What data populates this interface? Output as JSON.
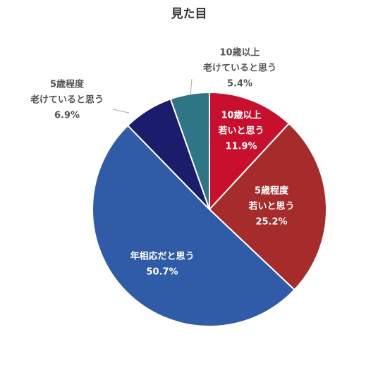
{
  "chart_data": {
    "type": "pie",
    "title": "見た目",
    "categories": [
      [
        "10歳以上",
        "若いと思う"
      ],
      [
        "5歳程度",
        "若いと思う"
      ],
      [
        "年相応だと思う"
      ],
      [
        "5歳程度",
        "老けていると思う"
      ],
      [
        "10歳以上",
        "老けていると思う"
      ]
    ],
    "values": [
      11.9,
      25.2,
      50.7,
      6.9,
      5.4
    ],
    "value_labels": [
      "11.9%",
      "25.2%",
      "50.7%",
      "6.9%",
      "5.4%"
    ],
    "colors": [
      "#c8102e",
      "#a62b2b",
      "#2f5ba7",
      "#1b1c6b",
      "#2e7585"
    ]
  }
}
